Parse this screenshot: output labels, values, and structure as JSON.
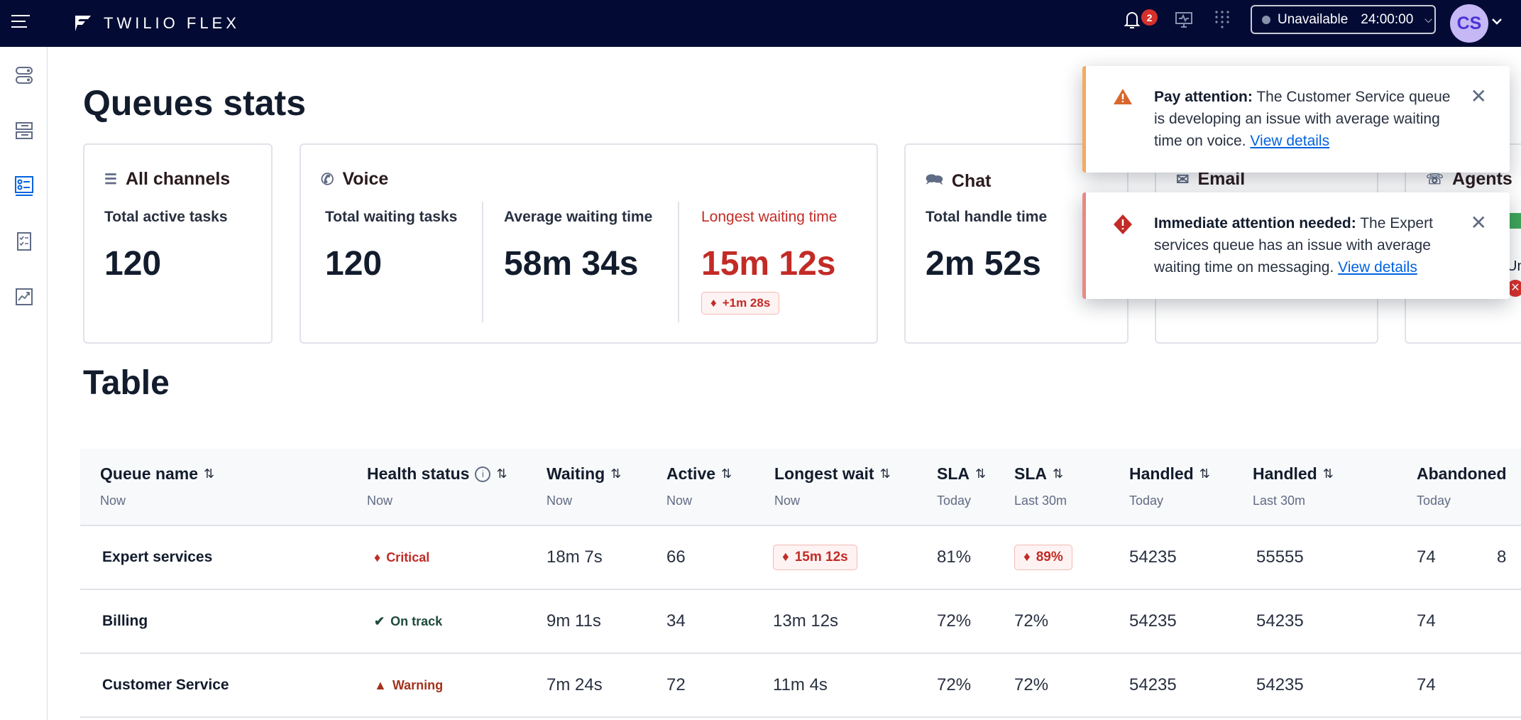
{
  "topbar": {
    "brand": "TWILIO FLEX",
    "notification_count": "2",
    "status": "Unavailable",
    "status_timer": "24:00:00",
    "avatar_initials": "CS"
  },
  "sidebar": {
    "items": [
      {
        "icon": "toggles-icon"
      },
      {
        "icon": "queues-list-icon"
      },
      {
        "icon": "queues-stats-icon",
        "active": true
      },
      {
        "icon": "checklist-icon"
      },
      {
        "icon": "analytics-icon"
      }
    ]
  },
  "page": {
    "title": "Queues stats",
    "table_title": "Table"
  },
  "cards": {
    "all_channels": {
      "title": "All channels",
      "label": "Total active tasks",
      "value": "120"
    },
    "voice": {
      "title": "Voice",
      "metrics": [
        {
          "label": "Total waiting tasks",
          "value": "120"
        },
        {
          "label": "Average waiting time",
          "value": "58m 34s"
        },
        {
          "label": "Longest waiting time",
          "value": "15m 12s",
          "delta": "+1m 28s"
        }
      ]
    },
    "chat": {
      "title": "Chat",
      "label": "Total handle time",
      "value": "2m 52s"
    },
    "email": {
      "title": "Email"
    },
    "agents": {
      "title": "Agents",
      "partial_label": "Un"
    }
  },
  "table": {
    "columns": [
      {
        "label": "Queue name",
        "sub": "Now"
      },
      {
        "label": "Health status",
        "sub": "Now"
      },
      {
        "label": "Waiting",
        "sub": "Now"
      },
      {
        "label": "Active",
        "sub": "Now"
      },
      {
        "label": "Longest wait",
        "sub": "Now"
      },
      {
        "label": "SLA",
        "sub": "Today"
      },
      {
        "label": "SLA",
        "sub": "Last 30m"
      },
      {
        "label": "Handled",
        "sub": "Today"
      },
      {
        "label": "Handled",
        "sub": "Last 30m"
      },
      {
        "label": "Abandoned",
        "sub": "Today"
      }
    ],
    "rows": [
      {
        "name": "Expert services",
        "health": "Critical",
        "waiting": "18m 7s",
        "active": "66",
        "longest": "15m 12s",
        "longest_alert": true,
        "sla_today": "81%",
        "sla_30m": "89%",
        "sla_30m_alert": true,
        "handled_today": "54235",
        "handled_30m": "55555",
        "abandoned_today": "74",
        "extra": "8"
      },
      {
        "name": "Billing",
        "health": "On track",
        "waiting": "9m 11s",
        "active": "34",
        "longest": "13m 12s",
        "sla_today": "72%",
        "sla_30m": "72%",
        "handled_today": "54235",
        "handled_30m": "54235",
        "abandoned_today": "74"
      },
      {
        "name": "Customer Service",
        "health": "Warning",
        "waiting": "7m 24s",
        "active": "72",
        "longest": "11m 4s",
        "sla_today": "72%",
        "sla_30m": "72%",
        "handled_today": "54235",
        "handled_30m": "54235",
        "abandoned_today": "74"
      }
    ]
  },
  "toasts": [
    {
      "type": "warning",
      "title": "Pay attention:",
      "message": "The Customer Service queue is developing an issue with average waiting time on voice.",
      "link": "View details",
      "color": "#f5a964"
    },
    {
      "type": "error",
      "title": "Immediate attention needed:",
      "message": "The Expert services queue has an issue with average waiting time on messaging.",
      "link": "View details",
      "color": "#e68a86"
    }
  ],
  "colors": {
    "topbar": "#030b35",
    "critical": "#c22b26",
    "ontrack": "#1f4a3a",
    "warning": "#a3321c",
    "link": "#0263e0",
    "active_nav": "#0263e0"
  }
}
